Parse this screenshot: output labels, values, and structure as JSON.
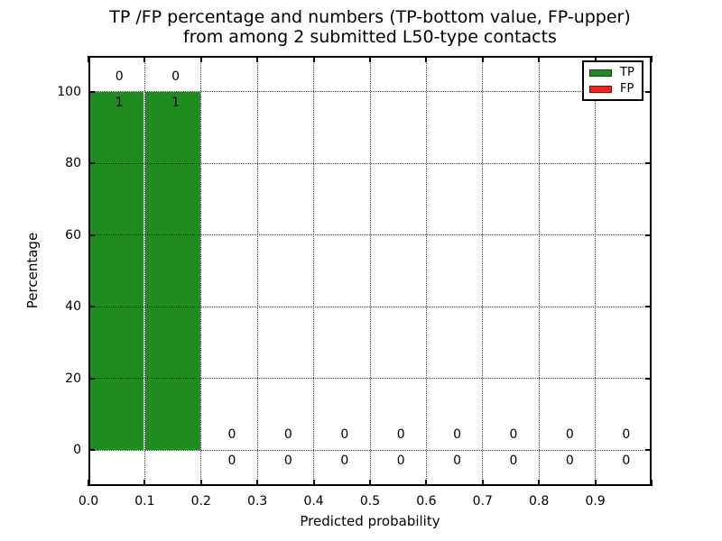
{
  "title": {
    "line1": "TP /FP percentage and numbers (TP-bottom value, FP-upper)",
    "line2": "from among 2 submitted L50-type contacts"
  },
  "axes": {
    "xlabel": "Predicted probability",
    "ylabel": "Percentage",
    "xlim": [
      0.0,
      1.0
    ],
    "ylim": [
      -10,
      110
    ],
    "x_ticks": [
      {
        "value": 0.0,
        "label": "0.0"
      },
      {
        "value": 0.1,
        "label": "0.1"
      },
      {
        "value": 0.2,
        "label": "0.2"
      },
      {
        "value": 0.3,
        "label": "0.3"
      },
      {
        "value": 0.4,
        "label": "0.4"
      },
      {
        "value": 0.5,
        "label": "0.5"
      },
      {
        "value": 0.6,
        "label": "0.6"
      },
      {
        "value": 0.7,
        "label": "0.7"
      },
      {
        "value": 0.8,
        "label": "0.8"
      },
      {
        "value": 0.9,
        "label": "0.9"
      },
      {
        "value": 1.0,
        "label": ""
      }
    ],
    "y_ticks": [
      {
        "value": 0,
        "label": "0"
      },
      {
        "value": 20,
        "label": "20"
      },
      {
        "value": 40,
        "label": "40"
      },
      {
        "value": 60,
        "label": "60"
      },
      {
        "value": 80,
        "label": "80"
      },
      {
        "value": 100,
        "label": "100"
      }
    ],
    "grid_style": "dotted"
  },
  "legend": {
    "position": "upper-right",
    "items": [
      {
        "label": "TP",
        "color": "#1E8C1E",
        "edge": "#0C4A0C"
      },
      {
        "label": "FP",
        "color": "#FA2020",
        "edge": "#7E0E0E"
      }
    ]
  },
  "chart_data": {
    "type": "bar",
    "stacked": true,
    "title": "TP /FP percentage and numbers (TP-bottom value, FP-upper) from among 2 submitted L50-type contacts",
    "xlabel": "Predicted probability",
    "ylabel": "Percentage",
    "xlim": [
      0.0,
      1.0
    ],
    "ylim": [
      -10,
      110
    ],
    "grid": true,
    "legend_position": "upper right",
    "submitted_contacts": 2,
    "bin_edges": [
      0.0,
      0.1,
      0.2,
      0.3,
      0.4,
      0.5,
      0.6,
      0.7,
      0.8,
      0.9,
      1.0
    ],
    "series": [
      {
        "name": "TP",
        "color": "#1E8C1E",
        "percent": [
          100,
          100,
          0,
          0,
          0,
          0,
          0,
          0,
          0,
          0
        ],
        "counts": [
          1,
          1,
          0,
          0,
          0,
          0,
          0,
          0,
          0,
          0
        ]
      },
      {
        "name": "FP",
        "color": "#FA2020",
        "percent": [
          0,
          0,
          0,
          0,
          0,
          0,
          0,
          0,
          0,
          0
        ],
        "counts": [
          0,
          0,
          0,
          0,
          0,
          0,
          0,
          0,
          0,
          0
        ]
      }
    ]
  }
}
